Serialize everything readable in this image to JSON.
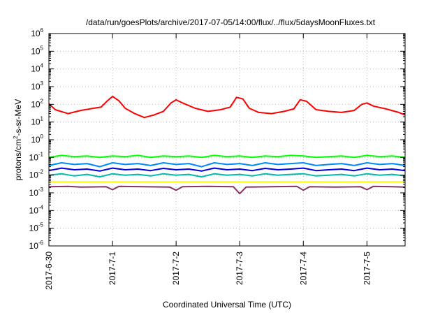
{
  "chart_data": {
    "type": "line",
    "title": "/data/run/goesPlots/archive/2017-07-05/14:00/flux/../flux/5daysMoonFluxes.txt",
    "xlabel": "Coordinated Universal Time (UTC)",
    "ylabel_parts": {
      "a": "protons/cm",
      "sup": "2",
      "b": "-s-sr-MeV"
    },
    "y_scale": "log",
    "ylim": [
      1e-06,
      1000000.0
    ],
    "y_ticks": [
      {
        "base": "10",
        "exp": "-6"
      },
      {
        "base": "10",
        "exp": "-5"
      },
      {
        "base": "10",
        "exp": "-4"
      },
      {
        "base": "10",
        "exp": "-3"
      },
      {
        "base": "10",
        "exp": "-2"
      },
      {
        "base": "10",
        "exp": "-1"
      },
      {
        "base": "10",
        "exp": "0"
      },
      {
        "base": "10",
        "exp": "1"
      },
      {
        "base": "10",
        "exp": "2"
      },
      {
        "base": "10",
        "exp": "3"
      },
      {
        "base": "10",
        "exp": "4"
      },
      {
        "base": "10",
        "exp": "5"
      },
      {
        "base": "10",
        "exp": "6"
      }
    ],
    "x_ticks": [
      "2017-6-30",
      "2017-7-1",
      "2017-7-2",
      "2017-7-3",
      "2017-7-4",
      "2017-7-5"
    ],
    "xlim_days": [
      0,
      5.6
    ],
    "grid": true,
    "series": [
      {
        "color": "#ff0000",
        "x": [
          0,
          0.1,
          0.3,
          0.5,
          0.7,
          0.82,
          0.92,
          1.0,
          1.1,
          1.2,
          1.35,
          1.5,
          1.65,
          1.8,
          1.92,
          2.0,
          2.1,
          2.3,
          2.5,
          2.7,
          2.85,
          2.95,
          3.05,
          3.15,
          3.3,
          3.5,
          3.7,
          3.85,
          3.95,
          4.05,
          4.2,
          4.4,
          4.6,
          4.8,
          4.92,
          5.0,
          5.1,
          5.3,
          5.5,
          5.6
        ],
        "y": [
          110,
          50,
          30,
          45,
          60,
          70,
          160,
          280,
          160,
          60,
          30,
          18,
          25,
          40,
          120,
          180,
          120,
          60,
          40,
          50,
          70,
          250,
          200,
          60,
          35,
          30,
          40,
          55,
          180,
          150,
          50,
          40,
          35,
          45,
          100,
          120,
          80,
          55,
          35,
          25
        ]
      },
      {
        "color": "#00ff00",
        "x": [
          0,
          0.2,
          0.4,
          0.6,
          0.8,
          1.0,
          1.2,
          1.4,
          1.6,
          1.8,
          2.0,
          2.2,
          2.4,
          2.6,
          2.8,
          3.0,
          3.2,
          3.4,
          3.6,
          3.8,
          4.0,
          4.2,
          4.4,
          4.6,
          4.8,
          5.0,
          5.2,
          5.4,
          5.6
        ],
        "y": [
          0.1,
          0.13,
          0.11,
          0.12,
          0.1,
          0.12,
          0.11,
          0.13,
          0.1,
          0.12,
          0.11,
          0.12,
          0.1,
          0.13,
          0.11,
          0.12,
          0.1,
          0.12,
          0.11,
          0.13,
          0.12,
          0.1,
          0.11,
          0.12,
          0.1,
          0.13,
          0.11,
          0.12,
          0.1
        ]
      },
      {
        "color": "#0088ff",
        "x": [
          0,
          0.2,
          0.4,
          0.6,
          0.8,
          1.0,
          1.2,
          1.4,
          1.6,
          1.8,
          2.0,
          2.2,
          2.4,
          2.6,
          2.8,
          3.0,
          3.2,
          3.4,
          3.6,
          3.8,
          4.0,
          4.2,
          4.4,
          4.6,
          4.8,
          5.0,
          5.2,
          5.4,
          5.6
        ],
        "y": [
          0.035,
          0.05,
          0.04,
          0.045,
          0.03,
          0.05,
          0.04,
          0.045,
          0.035,
          0.05,
          0.04,
          0.045,
          0.03,
          0.05,
          0.04,
          0.045,
          0.035,
          0.05,
          0.04,
          0.045,
          0.05,
          0.035,
          0.04,
          0.045,
          0.035,
          0.05,
          0.04,
          0.045,
          0.035
        ]
      },
      {
        "color": "#0000dd",
        "x": [
          0,
          0.2,
          0.4,
          0.6,
          0.8,
          1.0,
          1.2,
          1.4,
          1.6,
          1.8,
          2.0,
          2.2,
          2.4,
          2.6,
          2.8,
          3.0,
          3.2,
          3.4,
          3.6,
          3.8,
          4.0,
          4.2,
          4.4,
          4.6,
          4.8,
          5.0,
          5.2,
          5.4,
          5.6
        ],
        "y": [
          0.018,
          0.025,
          0.02,
          0.022,
          0.017,
          0.025,
          0.02,
          0.022,
          0.018,
          0.024,
          0.02,
          0.022,
          0.017,
          0.025,
          0.02,
          0.022,
          0.018,
          0.024,
          0.02,
          0.022,
          0.025,
          0.018,
          0.02,
          0.022,
          0.018,
          0.025,
          0.02,
          0.022,
          0.018
        ]
      },
      {
        "color": "#00bbaa",
        "x": [
          0,
          0.2,
          0.4,
          0.6,
          0.8,
          1.0,
          1.2,
          1.4,
          1.6,
          1.8,
          2.0,
          2.2,
          2.4,
          2.6,
          2.8,
          3.0,
          3.2,
          3.4,
          3.6,
          3.8,
          4.0,
          4.2,
          4.4,
          4.6,
          4.8,
          5.0,
          5.2,
          5.4,
          5.6
        ],
        "y": [
          0.01,
          0.012,
          0.009,
          0.011,
          0.008,
          0.012,
          0.01,
          0.011,
          0.009,
          0.012,
          0.01,
          0.011,
          0.008,
          0.012,
          0.01,
          0.011,
          0.009,
          0.012,
          0.01,
          0.011,
          0.012,
          0.009,
          0.01,
          0.011,
          0.009,
          0.012,
          0.01,
          0.011,
          0.009
        ]
      },
      {
        "color": "#ffff00",
        "x": [
          0,
          0.5,
          1.0,
          1.5,
          2.0,
          2.5,
          3.0,
          3.5,
          4.0,
          4.5,
          5.0,
          5.6
        ],
        "y": [
          0.0042,
          0.0042,
          0.0042,
          0.0042,
          0.0042,
          0.0042,
          0.0042,
          0.0042,
          0.0042,
          0.0042,
          0.0042,
          0.0042
        ]
      },
      {
        "color": "#883366",
        "x": [
          0,
          0.3,
          0.5,
          0.9,
          1.0,
          1.1,
          1.5,
          1.9,
          2.0,
          2.1,
          2.5,
          2.9,
          3.0,
          3.1,
          3.5,
          3.9,
          4.0,
          4.1,
          4.5,
          4.9,
          5.0,
          5.1,
          5.4,
          5.6
        ],
        "y": [
          0.0022,
          0.0023,
          0.0021,
          0.0022,
          0.0015,
          0.0023,
          0.0022,
          0.0021,
          0.0014,
          0.0022,
          0.0023,
          0.0022,
          0.0009,
          0.0021,
          0.0022,
          0.0023,
          0.0014,
          0.0022,
          0.0021,
          0.0022,
          0.0015,
          0.0023,
          0.0022,
          0.0021
        ]
      }
    ]
  }
}
